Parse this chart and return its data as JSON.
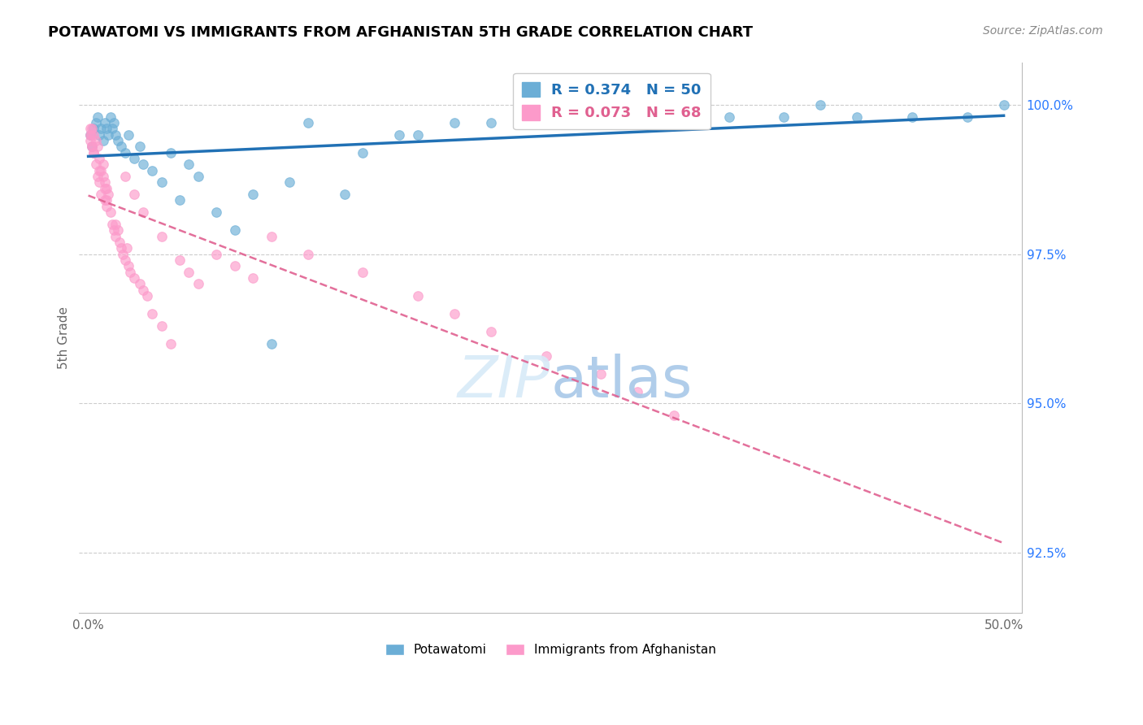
{
  "title": "POTAWATOMI VS IMMIGRANTS FROM AFGHANISTAN 5TH GRADE CORRELATION CHART",
  "source": "Source: ZipAtlas.com",
  "ylabel": "5th Grade",
  "legend_blue_label": "Potawatomi",
  "legend_pink_label": "Immigrants from Afghanistan",
  "blue_color": "#6baed6",
  "pink_color": "#fc9aca",
  "blue_line_color": "#2171b5",
  "pink_line_color": "#e06090",
  "blue_R": "0.374",
  "blue_N": "50",
  "pink_R": "0.073",
  "pink_N": "68",
  "blue_scatter_x": [
    0.1,
    0.2,
    0.3,
    0.4,
    0.5,
    0.6,
    0.7,
    0.8,
    0.9,
    1.0,
    1.1,
    1.2,
    1.3,
    1.4,
    1.5,
    1.6,
    1.8,
    2.0,
    2.2,
    2.5,
    2.8,
    3.0,
    3.5,
    4.0,
    4.5,
    5.0,
    5.5,
    6.0,
    7.0,
    8.0,
    9.0,
    10.0,
    11.0,
    12.0,
    14.0,
    17.0,
    20.0,
    22.0,
    28.0,
    30.0,
    35.0,
    40.0,
    42.0,
    45.0,
    48.0,
    50.0,
    25.0,
    38.0,
    18.0,
    15.0
  ],
  "blue_scatter_y": [
    99.5,
    99.3,
    99.6,
    99.7,
    99.8,
    99.5,
    99.6,
    99.4,
    99.7,
    99.6,
    99.5,
    99.8,
    99.6,
    99.7,
    99.5,
    99.4,
    99.3,
    99.2,
    99.5,
    99.1,
    99.3,
    99.0,
    98.9,
    98.7,
    99.2,
    98.4,
    99.0,
    98.8,
    98.2,
    97.9,
    98.5,
    96.0,
    98.7,
    99.7,
    98.5,
    99.5,
    99.7,
    99.7,
    99.8,
    99.7,
    99.8,
    100.0,
    99.8,
    99.8,
    99.8,
    100.0,
    99.8,
    99.8,
    99.5,
    99.2
  ],
  "pink_scatter_x": [
    0.1,
    0.1,
    0.15,
    0.2,
    0.2,
    0.3,
    0.3,
    0.4,
    0.4,
    0.5,
    0.5,
    0.6,
    0.6,
    0.7,
    0.7,
    0.8,
    0.9,
    0.9,
    1.0,
    1.0,
    1.1,
    1.2,
    1.3,
    1.4,
    1.5,
    1.6,
    1.7,
    1.8,
    1.9,
    2.0,
    2.1,
    2.2,
    2.3,
    2.5,
    2.8,
    3.0,
    3.2,
    3.5,
    4.0,
    4.5,
    5.0,
    5.5,
    6.0,
    7.0,
    8.0,
    9.0,
    10.0,
    12.0,
    15.0,
    18.0,
    20.0,
    22.0,
    25.0,
    28.0,
    30.0,
    32.0,
    2.0,
    2.5,
    3.0,
    4.0,
    1.5,
    0.8,
    0.9,
    1.0,
    0.6,
    0.3,
    0.2,
    0.1
  ],
  "pink_scatter_y": [
    99.6,
    99.4,
    99.5,
    99.6,
    99.3,
    99.5,
    99.2,
    99.4,
    99.0,
    99.3,
    98.8,
    99.1,
    98.7,
    98.9,
    98.5,
    98.8,
    98.7,
    98.4,
    98.6,
    98.3,
    98.5,
    98.2,
    98.0,
    97.9,
    97.8,
    97.9,
    97.7,
    97.6,
    97.5,
    97.4,
    97.6,
    97.3,
    97.2,
    97.1,
    97.0,
    96.9,
    96.8,
    96.5,
    96.3,
    96.0,
    97.4,
    97.2,
    97.0,
    97.5,
    97.3,
    97.1,
    97.8,
    97.5,
    97.2,
    96.8,
    96.5,
    96.2,
    95.8,
    95.5,
    95.2,
    94.8,
    98.8,
    98.5,
    98.2,
    97.8,
    98.0,
    99.0,
    98.6,
    98.4,
    98.9,
    99.2,
    99.3,
    99.5
  ],
  "xlim": [
    -0.5,
    51
  ],
  "ylim": [
    91.5,
    100.7
  ],
  "yticks": [
    92.5,
    95.0,
    97.5,
    100.0
  ],
  "xticks": [
    0,
    12.5,
    25.0,
    37.5,
    50.0
  ],
  "xtick_labels": [
    "0.0%",
    "",
    "",
    "",
    "50.0%"
  ]
}
